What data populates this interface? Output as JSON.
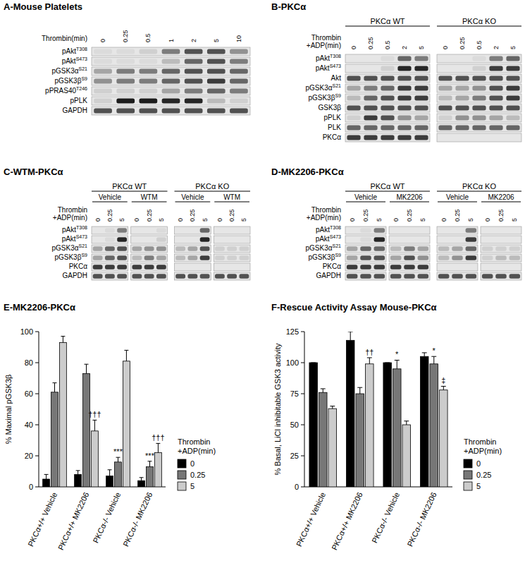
{
  "blots": [
    {
      "title": "A-Mouse Platelets",
      "lane_header": "Thrombin(min)",
      "groups": [
        {
          "subgroups": [
            {
              "lanes": [
                0,
                0.25,
                0.5,
                1,
                2,
                5,
                10
              ]
            }
          ]
        }
      ],
      "rows": [
        {
          "label": {
            "text": "pAkt",
            "sup": "T308"
          },
          "bands": [
            0.05,
            0.05,
            0.1,
            0.5,
            0.7,
            0.7,
            0.4
          ]
        },
        {
          "label": {
            "text": "pAkt",
            "sup": "S473"
          },
          "bands": [
            0.05,
            0.05,
            0.05,
            0.2,
            0.6,
            0.7,
            0.5
          ]
        },
        {
          "label": {
            "text": "pGSK3α",
            "sup": "S21"
          },
          "bands": [
            0.3,
            0.5,
            0.5,
            0.6,
            0.7,
            0.7,
            0.6
          ]
        },
        {
          "label": {
            "text": "pGSK3β",
            "sup": "S9"
          },
          "bands": [
            0.4,
            0.5,
            0.5,
            0.6,
            0.7,
            0.8,
            0.6
          ]
        },
        {
          "label": {
            "text": "pPRAS40",
            "sup": "T246"
          },
          "bands": [
            0.1,
            0.1,
            0.1,
            0.3,
            0.5,
            0.6,
            0.5
          ]
        },
        {
          "label": {
            "text": "pPLK"
          },
          "bands": [
            0.1,
            0.95,
            0.95,
            0.9,
            0.9,
            0.2,
            0.1
          ]
        },
        {
          "label": {
            "text": "GAPDH"
          },
          "bands": [
            0.7,
            0.7,
            0.7,
            0.7,
            0.7,
            0.7,
            0.7
          ]
        }
      ]
    },
    {
      "title": "B-PKCα",
      "lane_header": "Thrombin +ADP(min)",
      "groups": [
        {
          "name": "PKCα WT",
          "subgroups": [
            {
              "lanes": [
                0,
                0.25,
                0.5,
                2,
                5
              ]
            }
          ]
        },
        {
          "name": "PKCα KO",
          "subgroups": [
            {
              "lanes": [
                0,
                0.25,
                0.5,
                2,
                5
              ]
            }
          ]
        }
      ],
      "rows": [
        {
          "label": {
            "text": "pAkt",
            "sup": "T308"
          },
          "bands": [
            0,
            0,
            0.05,
            0.6,
            0.5,
            0,
            0,
            0.05,
            0.5,
            0.6
          ]
        },
        {
          "label": {
            "text": "pAkt",
            "sup": "S473"
          },
          "bands": [
            0,
            0,
            0.1,
            0.9,
            0.9,
            0,
            0,
            0.1,
            0.8,
            0.8
          ]
        },
        {
          "label": {
            "text": "Akt"
          },
          "bands": [
            0.7,
            0.7,
            0.7,
            0.7,
            0.7,
            0.7,
            0.7,
            0.7,
            0.7,
            0.7
          ]
        },
        {
          "label": {
            "text": "pGSK3α",
            "sup": "S21"
          },
          "bands": [
            0.3,
            0.5,
            0.6,
            0.8,
            0.8,
            0.3,
            0.3,
            0.4,
            0.7,
            0.8
          ]
        },
        {
          "label": {
            "text": "pGSK3β",
            "sup": "S9"
          },
          "bands": [
            0.2,
            0.6,
            0.7,
            0.8,
            0.8,
            0.2,
            0.3,
            0.5,
            0.7,
            0.8
          ]
        },
        {
          "label": {
            "text": "GSK3β"
          },
          "bands": [
            0.7,
            0.7,
            0.7,
            0.7,
            0.7,
            0.7,
            0.7,
            0.7,
            0.7,
            0.7
          ]
        },
        {
          "label": {
            "text": "pPLK"
          },
          "bands": [
            0.1,
            0.8,
            0.7,
            0.4,
            0.3,
            0.1,
            0.4,
            0.4,
            0.3,
            0.2
          ]
        },
        {
          "label": {
            "text": "PLK"
          },
          "bands": [
            0.6,
            0.6,
            0.6,
            0.6,
            0.6,
            0.6,
            0.6,
            0.6,
            0.6,
            0.6
          ]
        },
        {
          "label": {
            "text": "PKCα"
          },
          "bands": [
            0.8,
            0.8,
            0.8,
            0.8,
            0.8,
            0,
            0,
            0,
            0,
            0
          ]
        }
      ]
    },
    {
      "title": "C-WTM-PKCα",
      "lane_header": "Thrombin +ADP(min)",
      "groups": [
        {
          "name": "PKCα WT",
          "subgroups": [
            {
              "name": "Vehicle",
              "lanes": [
                0,
                0.25,
                5
              ]
            },
            {
              "name": "WTM",
              "lanes": [
                0,
                0.25,
                5
              ]
            }
          ]
        },
        {
          "name": "PKCα KO",
          "subgroups": [
            {
              "name": "Vehicle",
              "lanes": [
                0,
                0.25,
                5
              ]
            },
            {
              "name": "WTM",
              "lanes": [
                0,
                0.25,
                5
              ]
            }
          ]
        }
      ],
      "rows": [
        {
          "label": {
            "text": "pAkt",
            "sup": "T308"
          },
          "bands": [
            0,
            0.05,
            0.5,
            0,
            0,
            0.05,
            0,
            0,
            0.6,
            0,
            0,
            0
          ]
        },
        {
          "label": {
            "text": "pAkt",
            "sup": "S473"
          },
          "bands": [
            0,
            0.05,
            0.9,
            0,
            0,
            0.1,
            0,
            0,
            0.9,
            0,
            0,
            0
          ]
        },
        {
          "label": {
            "text": "pGSK3α",
            "sup": "S21"
          },
          "bands": [
            0.3,
            0.6,
            0.7,
            0.3,
            0.4,
            0.4,
            0.2,
            0.3,
            0.7,
            0.1,
            0.1,
            0.1
          ]
        },
        {
          "label": {
            "text": "pGSK3β",
            "sup": "S9"
          },
          "bands": [
            0.3,
            0.6,
            0.7,
            0.2,
            0.5,
            0.3,
            0.2,
            0.3,
            0.8,
            0.1,
            0.1,
            0.1
          ]
        },
        {
          "label": {
            "text": "PKCα"
          },
          "bands": [
            0.8,
            0.8,
            0.8,
            0.8,
            0.8,
            0.8,
            0,
            0,
            0,
            0,
            0,
            0
          ]
        },
        {
          "label": {
            "text": "GAPDH"
          },
          "bands": [
            0.7,
            0.7,
            0.7,
            0.7,
            0.7,
            0.7,
            0.7,
            0.7,
            0.7,
            0.7,
            0.7,
            0.7
          ]
        }
      ]
    },
    {
      "title": "D-MK2206-PKCα",
      "lane_header": "Thrombin +ADP(min)",
      "groups": [
        {
          "name": "PKCα WT",
          "subgroups": [
            {
              "name": "Vehicle",
              "lanes": [
                0,
                0.25,
                5
              ]
            },
            {
              "name": "MK2206",
              "lanes": [
                0,
                0.25,
                5
              ]
            }
          ]
        },
        {
          "name": "PKCα KO",
          "subgroups": [
            {
              "name": "Vehicle",
              "lanes": [
                0,
                0.25,
                5
              ]
            },
            {
              "name": "MK2206",
              "lanes": [
                0,
                0.25,
                5
              ]
            }
          ]
        }
      ],
      "rows": [
        {
          "label": {
            "text": "pAkt",
            "sup": "T308"
          },
          "bands": [
            0,
            0.05,
            0.5,
            0,
            0,
            0,
            0,
            0,
            0.5,
            0,
            0,
            0
          ]
        },
        {
          "label": {
            "text": "pAkt",
            "sup": "S473"
          },
          "bands": [
            0,
            0.05,
            0.9,
            0,
            0,
            0,
            0,
            0,
            0.8,
            0,
            0,
            0
          ]
        },
        {
          "label": {
            "text": "pGSK3α",
            "sup": "S21"
          },
          "bands": [
            0.3,
            0.6,
            0.6,
            0.2,
            0.5,
            0.3,
            0.2,
            0.3,
            0.6,
            0.1,
            0.1,
            0.1
          ]
        },
        {
          "label": {
            "text": "pGSK3β",
            "sup": "S9"
          },
          "bands": [
            0.3,
            0.7,
            0.7,
            0.3,
            0.7,
            0.4,
            0.2,
            0.4,
            0.8,
            0.1,
            0.2,
            0.2
          ]
        },
        {
          "label": {
            "text": "PKCα"
          },
          "bands": [
            0.8,
            0.8,
            0.8,
            0.8,
            0.8,
            0.8,
            0,
            0,
            0,
            0,
            0,
            0
          ]
        },
        {
          "label": {
            "text": "GAPDH"
          },
          "bands": [
            0.7,
            0.7,
            0.7,
            0.7,
            0.7,
            0.7,
            0.7,
            0.7,
            0.7,
            0.7,
            0.7,
            0.7
          ]
        }
      ]
    }
  ],
  "chart_data": [
    {
      "type": "bar",
      "title": "E-MK2206-PKCα",
      "y_label": "% Maximal pGSK3β",
      "categories": [
        "PKCα+/+ Vehicle",
        "PKCα+/+ MK2206",
        "PKCα-/- Vehicle",
        "PKCα-/- MK2206"
      ],
      "series": [
        {
          "name": "0",
          "color": "#000000",
          "values": [
            5,
            8,
            7,
            4
          ],
          "errors": [
            3,
            2.5,
            4,
            2
          ]
        },
        {
          "name": "0.25",
          "color": "#777777",
          "values": [
            61,
            73,
            16,
            13
          ],
          "errors": [
            6,
            6,
            3,
            3.5
          ]
        },
        {
          "name": "5",
          "color": "#cccccc",
          "values": [
            93,
            36,
            81,
            22
          ],
          "errors": [
            4,
            7,
            7,
            6
          ]
        }
      ],
      "legend_title": "Thrombin +ADP(min)",
      "legend": "right",
      "ylim": [
        0,
        100
      ],
      "yticks": [
        0,
        20,
        40,
        60,
        80,
        100
      ],
      "annotations": [
        {
          "text": "***",
          "category": 2,
          "series": 1
        },
        {
          "text": "***",
          "category": 3,
          "series": 1
        },
        {
          "text": "†††",
          "category": 1,
          "series": 2
        },
        {
          "text": "†††",
          "category": 3,
          "series": 2
        }
      ]
    },
    {
      "type": "bar",
      "title": "F-Rescue Activity Assay Mouse-PKCα",
      "y_label": "% Basal, LiCl inhibitable GSK3 activity",
      "categories": [
        "PKCα+/+ Vehicle",
        "PKCα+/+ MK2206",
        "PKCα-/- Vehicle",
        "PKCα-/- MK2206"
      ],
      "series": [
        {
          "name": "0",
          "color": "#000000",
          "values": [
            100,
            118,
            100,
            105
          ],
          "errors": [
            0,
            7,
            0,
            3
          ]
        },
        {
          "name": "0.25",
          "color": "#777777",
          "values": [
            76,
            75,
            95,
            99
          ],
          "errors": [
            3,
            5,
            7,
            6
          ]
        },
        {
          "name": "5",
          "color": "#cccccc",
          "values": [
            63,
            99,
            50,
            78
          ],
          "errors": [
            2,
            5,
            3,
            3
          ]
        }
      ],
      "legend_title": "Thrombin +ADP(min)",
      "legend": "right",
      "ylim": [
        0,
        125
      ],
      "yticks": [
        0,
        25,
        50,
        75,
        100,
        125
      ],
      "annotations": [
        {
          "text": "††",
          "category": 1,
          "series": 2
        },
        {
          "text": "*",
          "category": 2,
          "series": 1
        },
        {
          "text": "*",
          "category": 3,
          "series": 1
        },
        {
          "text": "‡",
          "category": 3,
          "series": 2
        }
      ]
    }
  ]
}
